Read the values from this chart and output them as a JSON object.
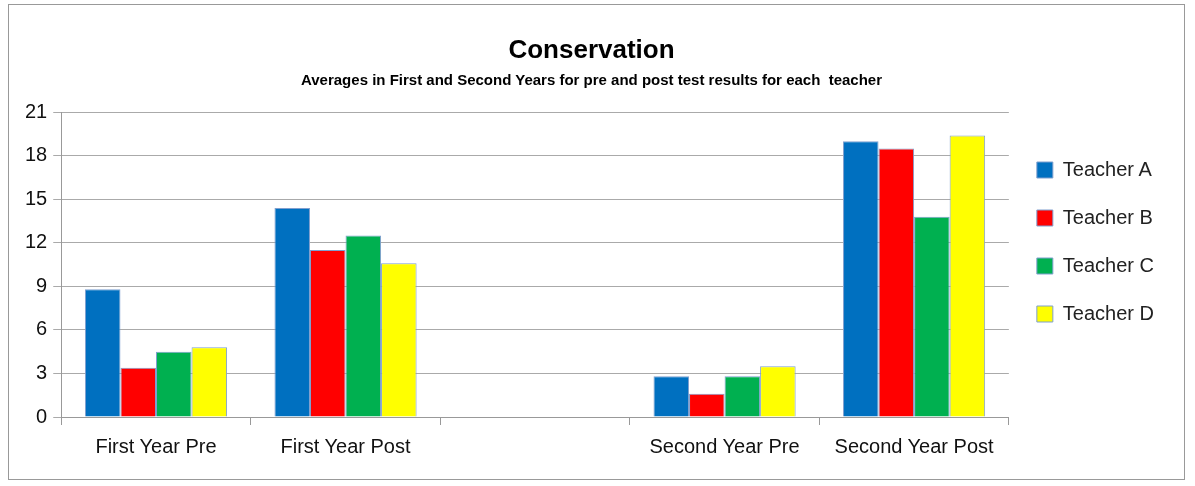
{
  "chart_data": {
    "type": "bar",
    "title": "Conservation",
    "subtitle": "Averages in First and Second Years for pre and post test results for each  teacher",
    "categories": [
      "First Year Pre",
      "First Year Post",
      null,
      "Second Year Pre",
      "Second Year Post"
    ],
    "series": [
      {
        "name": "Teacher A",
        "color": "#0070c0",
        "values": [
          8.8,
          14.4,
          null,
          2.8,
          19.0
        ]
      },
      {
        "name": "Teacher B",
        "color": "#ff0000",
        "values": [
          3.4,
          11.5,
          null,
          1.6,
          18.5
        ]
      },
      {
        "name": "Teacher C",
        "color": "#00b050",
        "values": [
          4.5,
          12.5,
          null,
          2.8,
          13.8
        ]
      },
      {
        "name": "Teacher D",
        "color": "#ffff00",
        "values": [
          4.8,
          10.6,
          null,
          3.5,
          19.4
        ]
      }
    ],
    "ylim": [
      0,
      21
    ],
    "yticks": [
      0,
      3,
      6,
      9,
      12,
      15,
      18,
      21
    ],
    "grid": "y",
    "legend": "right"
  }
}
